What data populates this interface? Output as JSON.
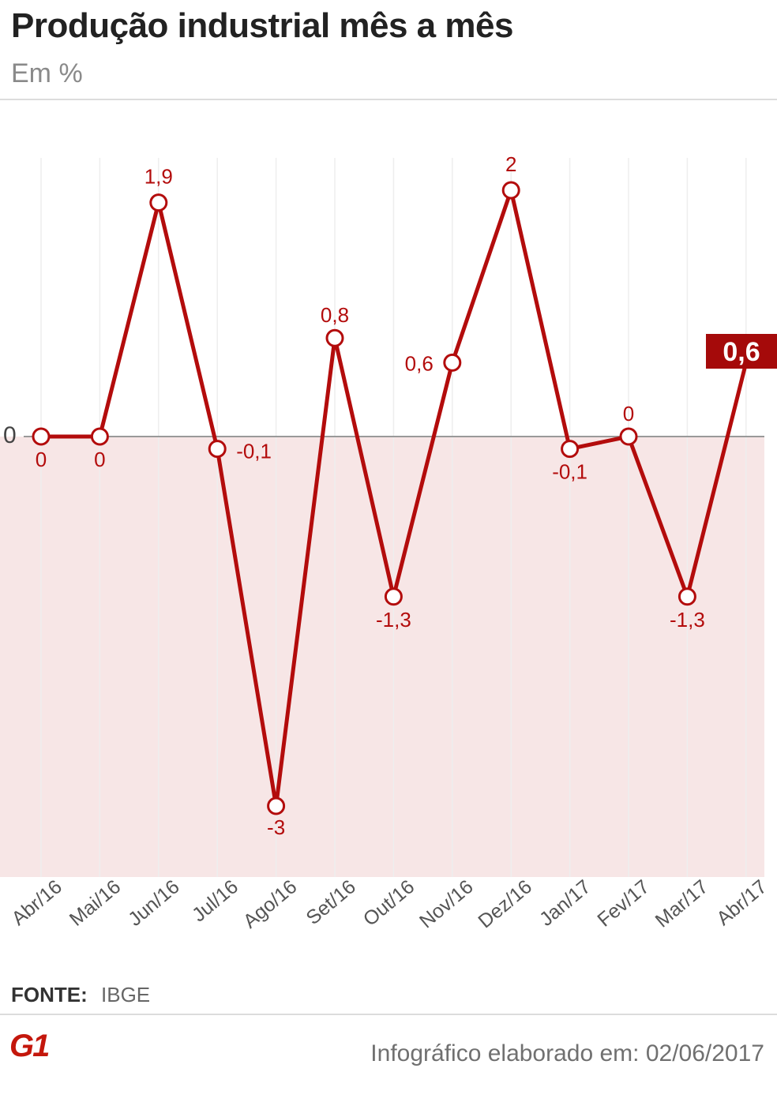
{
  "header": {
    "title": "Produção industrial mês a mês",
    "subtitle": "Em %"
  },
  "chart_data": {
    "type": "line",
    "categories": [
      "Abr/16",
      "Mai/16",
      "Jun/16",
      "Jul/16",
      "Ago/16",
      "Set/16",
      "Out/16",
      "Nov/16",
      "Dez/16",
      "Jan/17",
      "Fev/17",
      "Mar/17",
      "Abr/17"
    ],
    "values": [
      0,
      0,
      1.9,
      -0.1,
      -3,
      0.8,
      -1.3,
      0.6,
      2,
      -0.1,
      0,
      -1.3,
      0.6
    ],
    "value_labels": [
      "0",
      "0",
      "1,9",
      "-0,1",
      "-3",
      "0,8",
      "-1,3",
      "0,6",
      "2",
      "-0,1",
      "0",
      "-1,3",
      "0,6"
    ],
    "zero_label": "0",
    "highlight_index": 12,
    "colors": {
      "line": "#b30c0c",
      "negative_area": "#f7e6e6",
      "highlight_bg": "#a50a0a",
      "grid": "#eeeeee",
      "zero_line": "#999999"
    }
  },
  "source": {
    "label": "FONTE:",
    "value": "IBGE"
  },
  "footer": {
    "logo": "G1",
    "text": "Infográfico elaborado em: 02/06/2017"
  }
}
